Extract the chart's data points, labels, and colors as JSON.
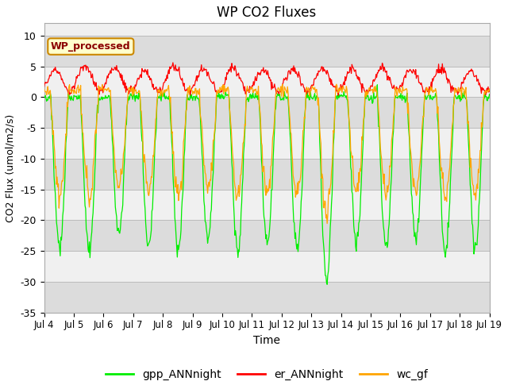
{
  "title": "WP CO2 Fluxes",
  "xlabel": "Time",
  "ylabel": "CO2 Flux (umol/m2/s)",
  "ylim": [
    -35,
    12
  ],
  "yticks": [
    -35,
    -30,
    -25,
    -20,
    -15,
    -10,
    -5,
    0,
    5,
    10
  ],
  "start_day": 4,
  "end_day": 19,
  "n_days": 15,
  "points_per_day": 48,
  "color_gpp": "#00EE00",
  "color_er": "#FF0000",
  "color_wc": "#FFA500",
  "legend_label_gpp": "gpp_ANNnight",
  "legend_label_er": "er_ANNnight",
  "legend_label_wc": "wc_gf",
  "inset_label": "WP_processed",
  "inset_bg": "#FFFFCC",
  "inset_border": "#CC8800",
  "inset_text_color": "#8B0000",
  "band_colors": [
    "#DCDCDC",
    "#F0F0F0"
  ],
  "fig_bg": "#FFFFFF",
  "band_edges": [
    -35,
    -30,
    -25,
    -20,
    -15,
    -10,
    -5,
    0,
    5,
    10,
    12
  ]
}
